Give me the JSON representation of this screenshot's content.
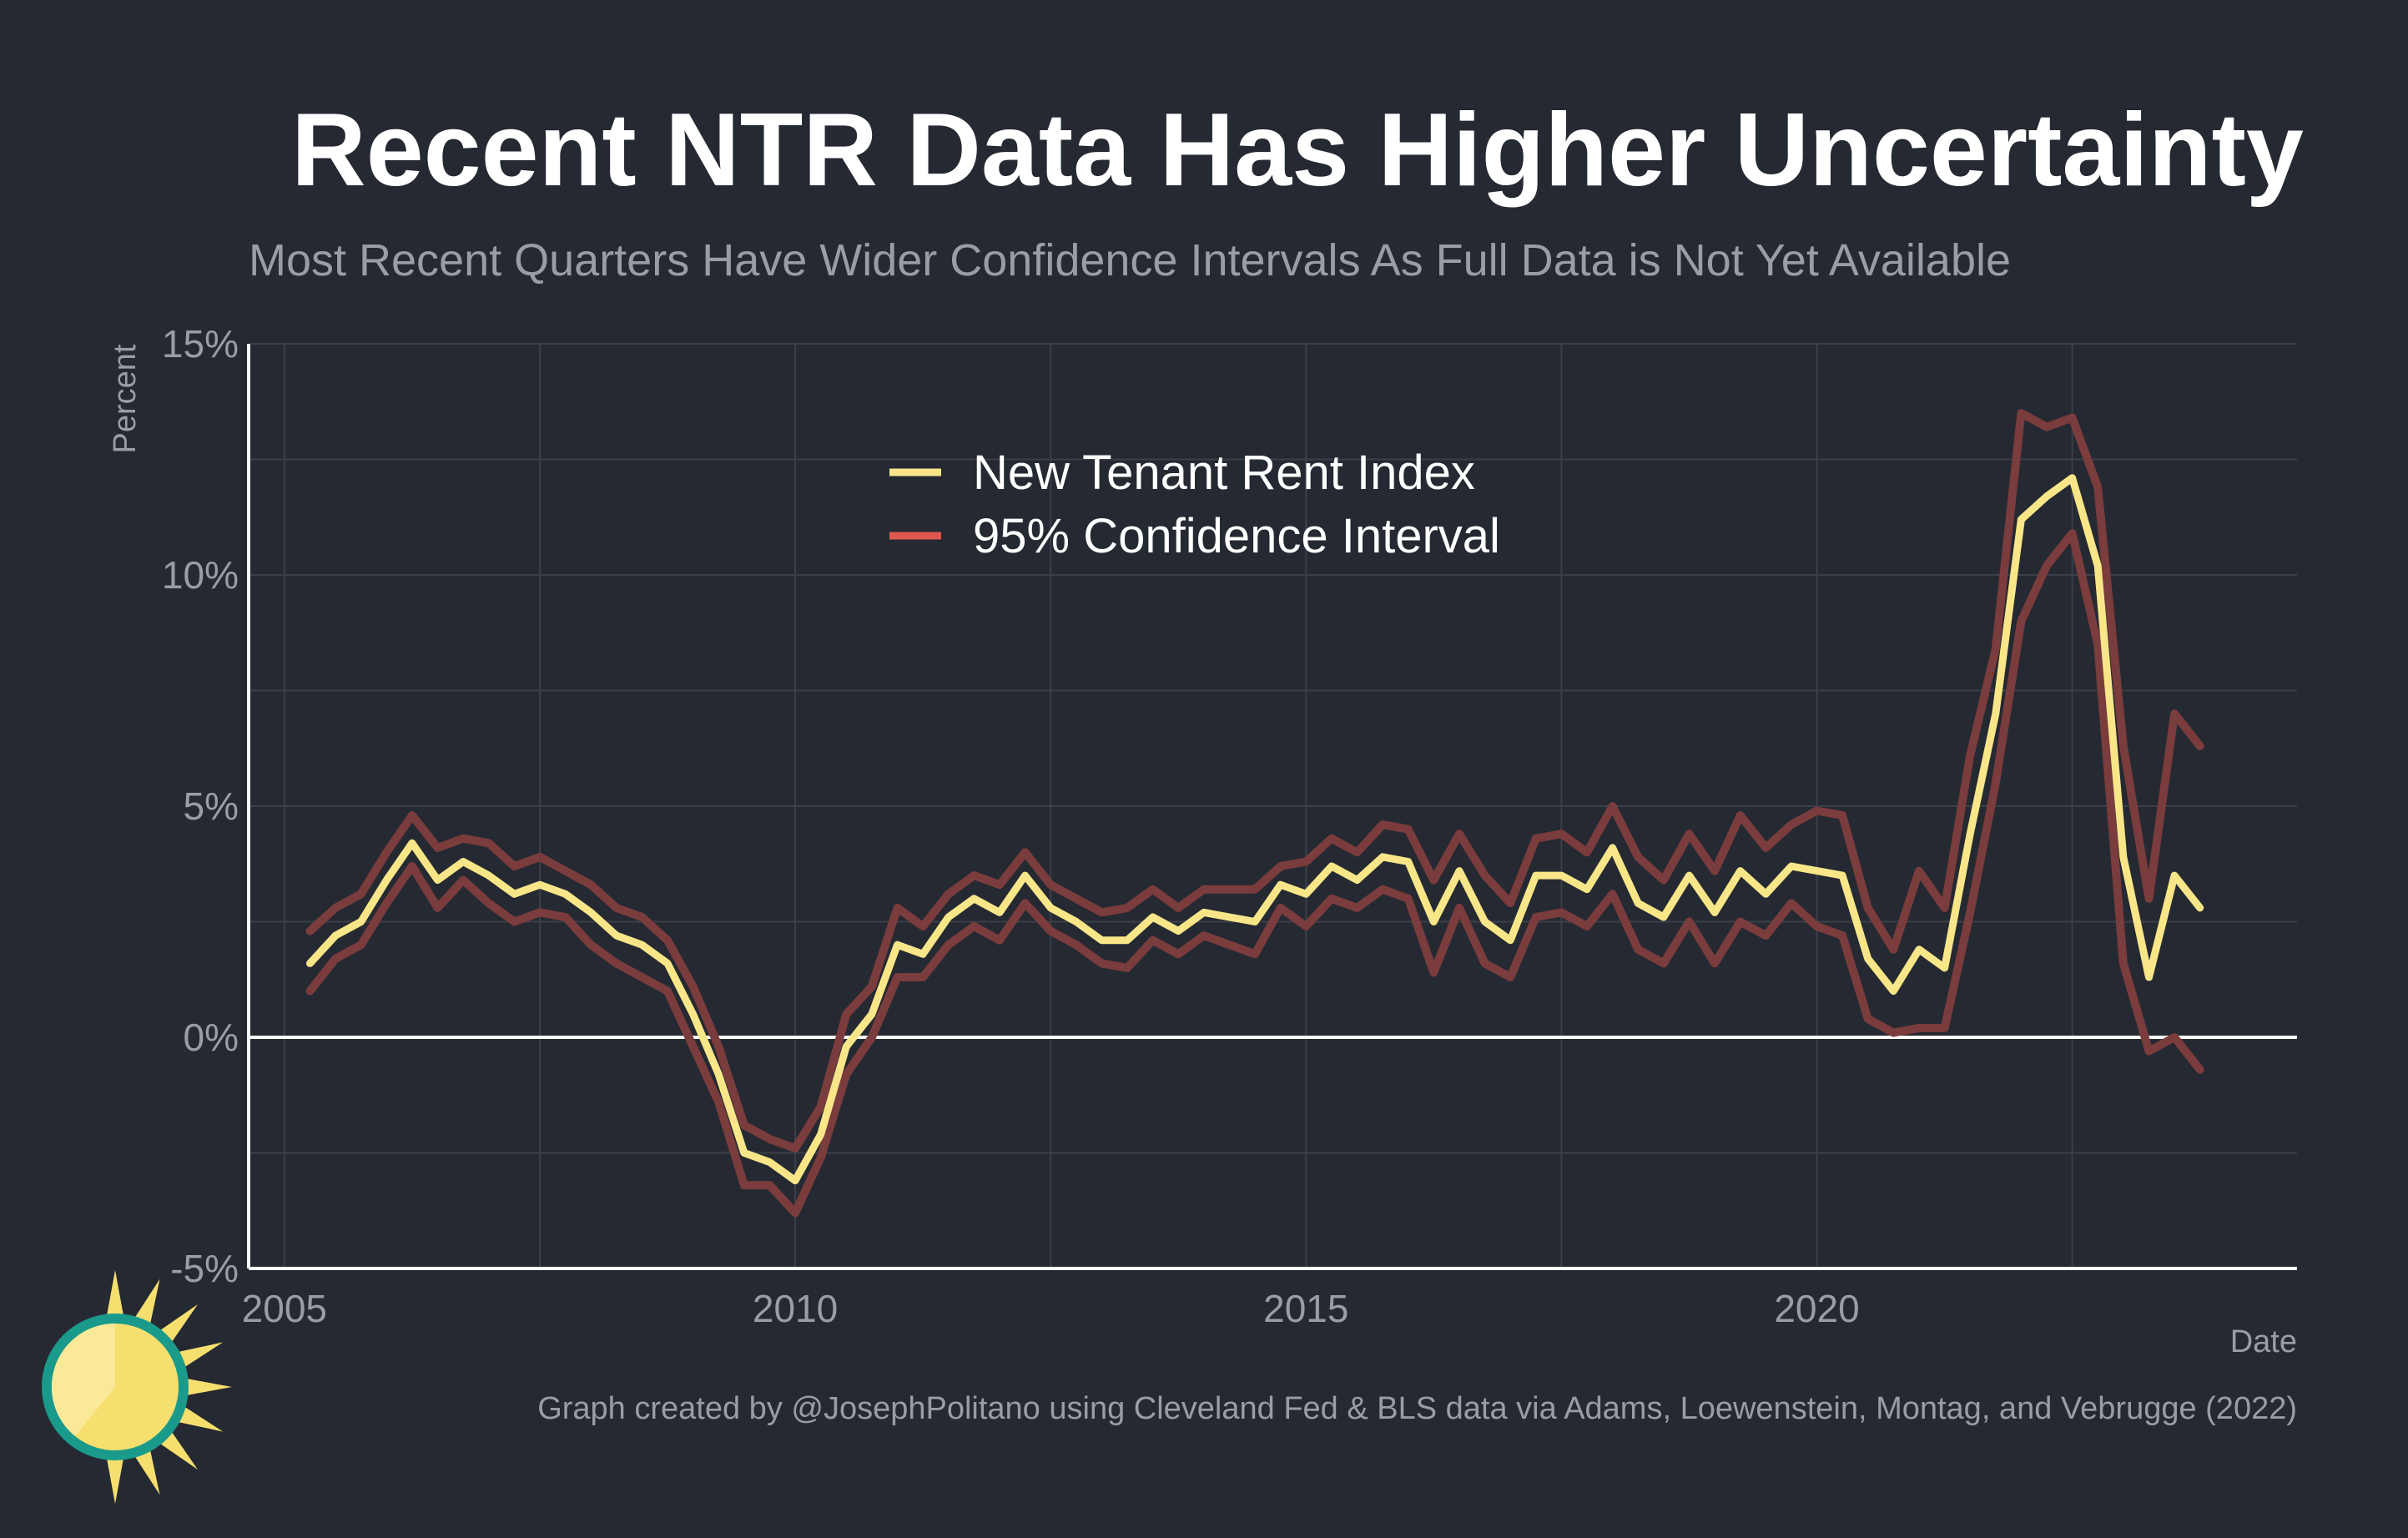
{
  "chart_data": {
    "type": "line",
    "title": "Recent NTR Data Has Higher Uncertainty",
    "subtitle": "Most Recent Quarters Have Wider Confidence Intervals As Full Data is Not Yet Available",
    "xlabel": "Date",
    "ylabel": "Percent",
    "caption": "Graph created by @JosephPolitano using Cleveland Fed & BLS data via Adams, Loewenstein, Montag, and Vebrugge (2022)",
    "xlim": [
      2004.65,
      2024.7
    ],
    "ylim": [
      -5,
      15
    ],
    "x_ticks": [
      2005,
      2010,
      2015,
      2020
    ],
    "x_tick_labels": [
      "2005",
      "2010",
      "2015",
      "2020"
    ],
    "y_ticks": [
      -5,
      0,
      5,
      10,
      15
    ],
    "y_tick_labels": [
      "-5%",
      "0%",
      "5%",
      "10%",
      "15%"
    ],
    "grid": true,
    "legend_placement": "top-center",
    "start_year": 2005.25,
    "step_years": 0.25,
    "series": [
      {
        "name": "New Tenant Rent Index",
        "color": "#f9e688",
        "values": [
          1.6,
          2.2,
          2.5,
          3.4,
          4.2,
          3.4,
          3.8,
          3.5,
          3.1,
          3.3,
          3.1,
          2.7,
          2.2,
          2.0,
          1.6,
          0.5,
          -0.8,
          -2.5,
          -2.7,
          -3.1,
          -2.1,
          -0.2,
          0.5,
          2.0,
          1.8,
          2.6,
          3.0,
          2.7,
          3.5,
          2.8,
          2.5,
          2.1,
          2.1,
          2.6,
          2.3,
          2.7,
          2.6,
          2.5,
          3.3,
          3.1,
          3.7,
          3.4,
          3.9,
          3.8,
          2.5,
          3.6,
          2.5,
          2.1,
          3.5,
          3.5,
          3.2,
          4.1,
          2.9,
          2.6,
          3.5,
          2.7,
          3.6,
          3.1,
          3.7,
          3.6,
          3.5,
          1.7,
          1.0,
          1.9,
          1.5,
          4.4,
          7.0,
          11.2,
          11.7,
          12.1,
          10.2,
          3.9,
          1.3,
          3.5,
          2.8
        ]
      },
      {
        "name": "95% Confidence Interval",
        "color": "#e0574e",
        "upper": [
          2.3,
          2.8,
          3.1,
          4.0,
          4.8,
          4.1,
          4.3,
          4.2,
          3.7,
          3.9,
          3.6,
          3.3,
          2.8,
          2.6,
          2.1,
          1.1,
          -0.2,
          -1.9,
          -2.2,
          -2.4,
          -1.5,
          0.5,
          1.1,
          2.8,
          2.4,
          3.1,
          3.5,
          3.3,
          4.0,
          3.3,
          3.0,
          2.7,
          2.8,
          3.2,
          2.8,
          3.2,
          3.2,
          3.2,
          3.7,
          3.8,
          4.3,
          4.0,
          4.6,
          4.5,
          3.4,
          4.4,
          3.5,
          2.9,
          4.3,
          4.4,
          4.0,
          5.0,
          3.9,
          3.4,
          4.4,
          3.6,
          4.8,
          4.1,
          4.6,
          4.9,
          4.8,
          2.8,
          1.9,
          3.6,
          2.8,
          6.1,
          8.4,
          13.5,
          13.2,
          13.4,
          11.9,
          6.3,
          3.0,
          7.0,
          6.3
        ],
        "lower": [
          1.0,
          1.7,
          2.0,
          2.9,
          3.7,
          2.8,
          3.4,
          2.9,
          2.5,
          2.7,
          2.6,
          2.0,
          1.6,
          1.3,
          1.0,
          -0.2,
          -1.4,
          -3.2,
          -3.2,
          -3.8,
          -2.6,
          -0.8,
          0.0,
          1.3,
          1.3,
          2.0,
          2.4,
          2.1,
          2.9,
          2.3,
          2.0,
          1.6,
          1.5,
          2.1,
          1.8,
          2.2,
          2.0,
          1.8,
          2.8,
          2.4,
          3.0,
          2.8,
          3.2,
          3.0,
          1.4,
          2.8,
          1.6,
          1.3,
          2.6,
          2.7,
          2.4,
          3.1,
          1.9,
          1.6,
          2.5,
          1.6,
          2.5,
          2.2,
          2.9,
          2.4,
          2.2,
          0.4,
          0.1,
          0.2,
          0.2,
          2.7,
          5.5,
          9.0,
          10.2,
          10.9,
          8.5,
          1.6,
          -0.3,
          0.0,
          -0.7
        ]
      }
    ]
  },
  "colors": {
    "background": "#252932",
    "grid": "#3b3f48",
    "axis": "#ffffff",
    "zero_line": "#ffffff",
    "ci_line": "#7a3c3c",
    "logo_teal": "#1a9a8a",
    "logo_yellow": "#f6df6e",
    "logo_light": "#fbe99a"
  },
  "logo": {
    "icon": "sun-logo-icon"
  }
}
